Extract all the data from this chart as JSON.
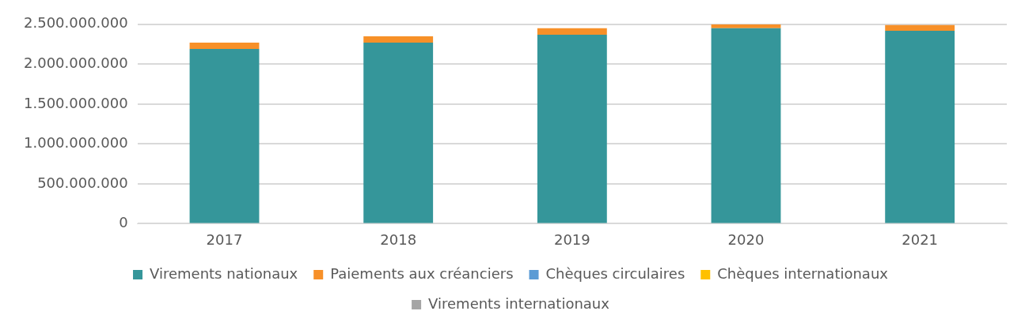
{
  "chart_data": {
    "type": "bar",
    "stacked": true,
    "categories": [
      "2017",
      "2018",
      "2019",
      "2020",
      "2021"
    ],
    "series": [
      {
        "name": "Virements nationaux",
        "color": "#35969a",
        "values": [
          2190000000,
          2270000000,
          2370000000,
          2450000000,
          2420000000
        ]
      },
      {
        "name": "Paiements aux créanciers",
        "color": "#f79028",
        "values": [
          80000000,
          80000000,
          80000000,
          50000000,
          70000000
        ]
      },
      {
        "name": "Chèques circulaires",
        "color": "#5b9bd5",
        "values": [
          null,
          null,
          null,
          null,
          null
        ]
      },
      {
        "name": "Chèques internationaux",
        "color": "#ffc000",
        "values": [
          null,
          null,
          null,
          null,
          null
        ]
      },
      {
        "name": "Virements internationaux",
        "color": "#a5a5a5",
        "values": [
          null,
          null,
          null,
          null,
          null
        ]
      }
    ],
    "ylim": [
      0,
      2500000000
    ],
    "yticks": [
      {
        "value": 0,
        "label": "0"
      },
      {
        "value": 500000000,
        "label": "500.000.000"
      },
      {
        "value": 1000000000,
        "label": "1.000.000.000"
      },
      {
        "value": 1500000000,
        "label": "1.500.000.000"
      },
      {
        "value": 2000000000,
        "label": "2.000.000.000"
      },
      {
        "value": 2500000000,
        "label": "2.500.000.000"
      }
    ],
    "grid": "y",
    "legend": "bottom"
  }
}
